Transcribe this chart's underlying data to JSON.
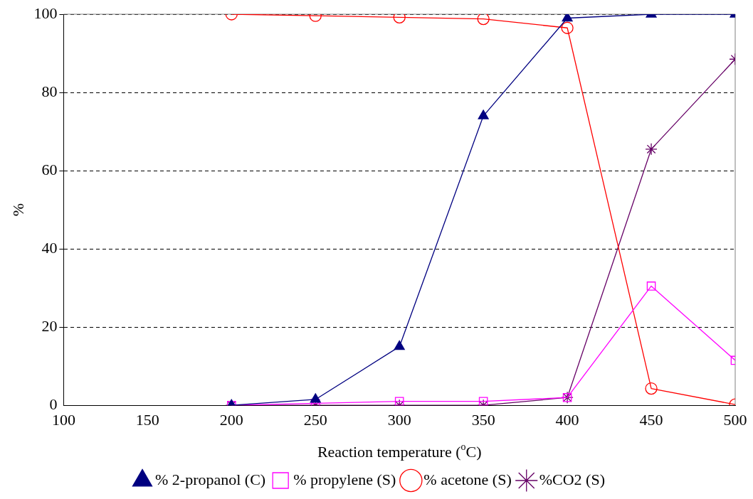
{
  "chart_data": {
    "type": "line",
    "xlabel": "Reaction temperature ($^{o}$C)",
    "ylabel": "%",
    "x": [
      200,
      250,
      300,
      350,
      400,
      450,
      500
    ],
    "xlim": [
      100,
      500
    ],
    "xticks": [
      100,
      150,
      200,
      250,
      300,
      350,
      400,
      450,
      500
    ],
    "ylim": [
      0,
      100
    ],
    "yticks": [
      0,
      20,
      40,
      60,
      80,
      100
    ],
    "grid": "y",
    "legend": "bottom",
    "series": [
      {
        "name": "% 2-propanol (C)",
        "color": "#000080",
        "marker": "triangle",
        "values": [
          0,
          1.5,
          15,
          74,
          99,
          100,
          100
        ]
      },
      {
        "name": "% propylene (S)",
        "color": "#ff00ff",
        "marker": "square",
        "values": [
          0,
          0.5,
          1,
          1,
          2,
          30.5,
          11.5
        ]
      },
      {
        "name": "% acetone (S)",
        "color": "#ff0000",
        "marker": "circle",
        "values": [
          100,
          99.6,
          99.2,
          98.8,
          96.5,
          4.3,
          0.2
        ]
      },
      {
        "name": "%CO2 (S)",
        "color": "#660066",
        "marker": "cross",
        "values": [
          0,
          0,
          0,
          0,
          2,
          65.5,
          88.5
        ]
      }
    ]
  }
}
